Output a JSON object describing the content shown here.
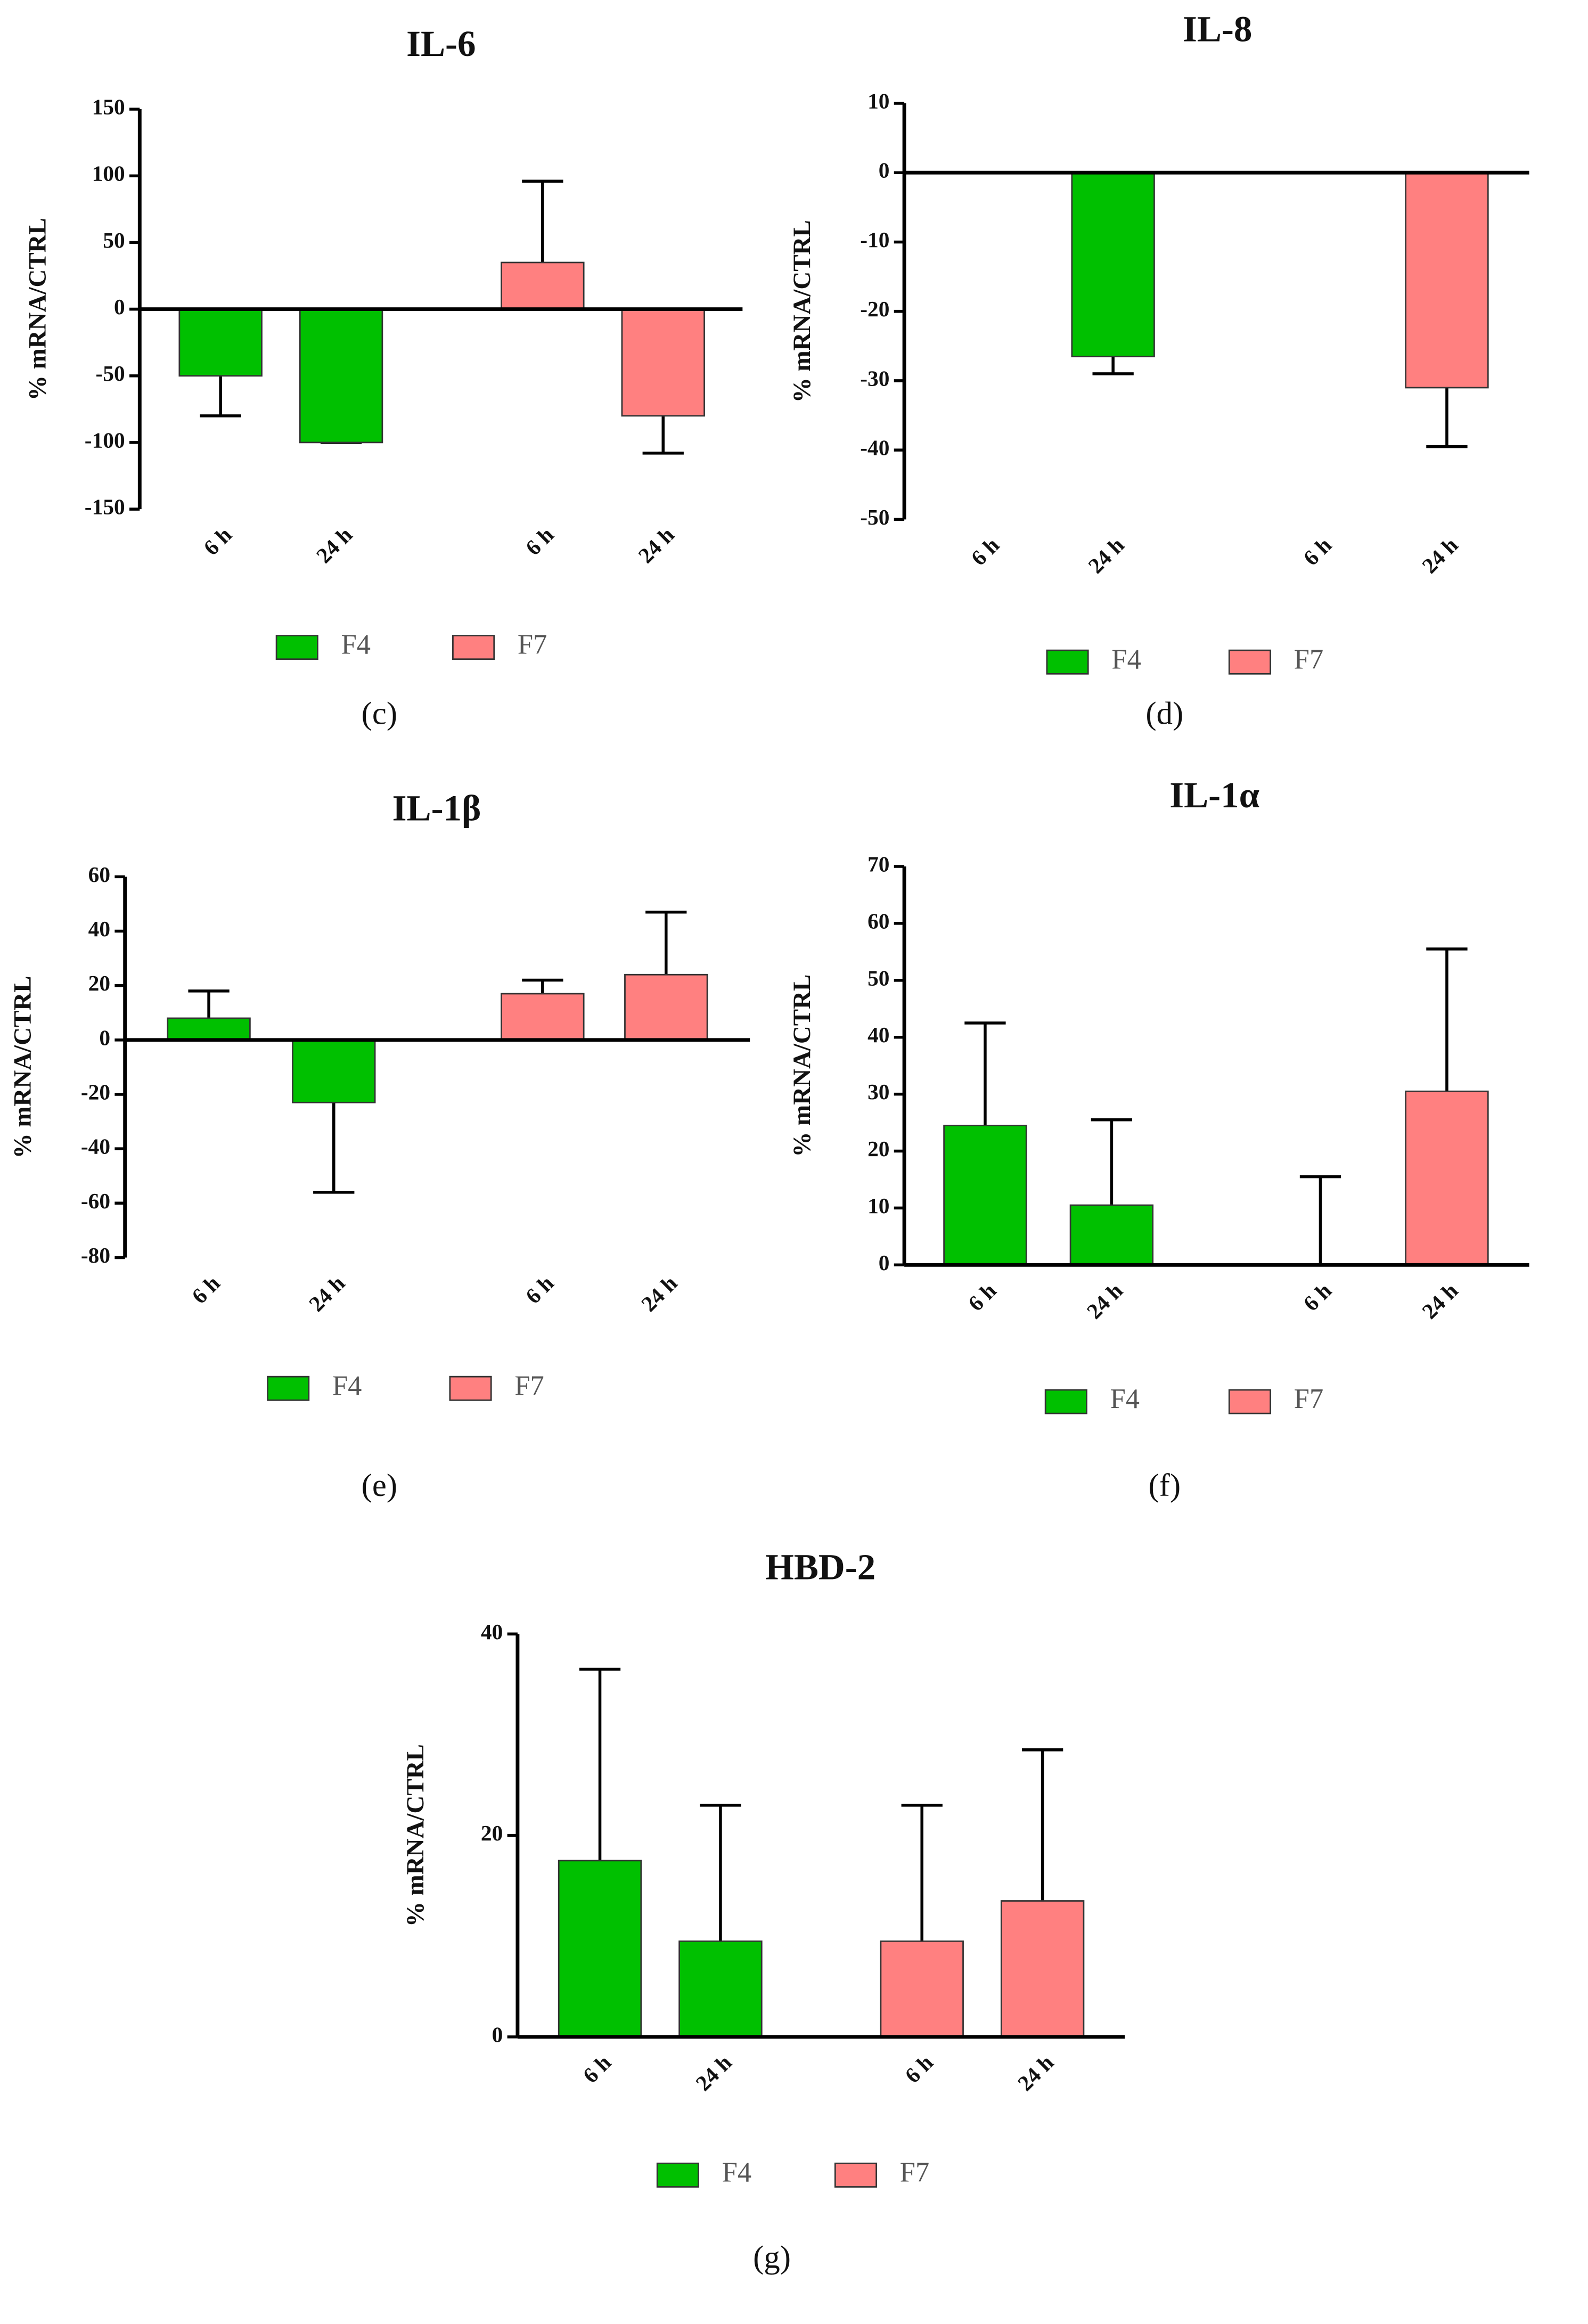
{
  "chart_data": [
    {
      "type": "bar",
      "title": "IL-6",
      "ylabel": "% mRNA/CTRL",
      "panel_label": "(c)",
      "categories": [
        "6 h",
        "24 h",
        "6 h",
        "24 h"
      ],
      "series": [
        {
          "name": "F4",
          "color": "#00c000",
          "values": [
            -50,
            -100,
            null,
            null
          ],
          "errors": [
            30,
            0,
            null,
            null
          ]
        },
        {
          "name": "F7",
          "color": "#ff8080",
          "values": [
            null,
            null,
            35,
            -80
          ],
          "errors": [
            null,
            null,
            61,
            28
          ]
        }
      ],
      "ylim": [
        -150,
        150
      ],
      "yticks": [
        -150,
        -100,
        -50,
        0,
        50,
        100,
        150
      ]
    },
    {
      "type": "bar",
      "title": "IL-8",
      "ylabel": "% mRNA/CTRL",
      "panel_label": "(d)",
      "categories": [
        "6 h",
        "24 h",
        "6 h",
        "24 h"
      ],
      "series": [
        {
          "name": "F4",
          "color": "#00c000",
          "values": [
            null,
            -26.5,
            null,
            null
          ],
          "errors": [
            null,
            2.5,
            null,
            null
          ]
        },
        {
          "name": "F7",
          "color": "#ff8080",
          "values": [
            null,
            null,
            null,
            -31
          ],
          "errors": [
            null,
            null,
            null,
            8.5
          ]
        }
      ],
      "ylim": [
        -50,
        10
      ],
      "yticks": [
        -50,
        -40,
        -30,
        -20,
        -10,
        0,
        10
      ]
    },
    {
      "type": "bar",
      "title": "IL-1β",
      "ylabel": "% mRNA/CTRL",
      "panel_label": "(e)",
      "categories": [
        "6 h",
        "24 h",
        "6 h",
        "24 h"
      ],
      "series": [
        {
          "name": "F4",
          "color": "#00c000",
          "values": [
            8,
            -23,
            null,
            null
          ],
          "errors": [
            10,
            33,
            null,
            null
          ]
        },
        {
          "name": "F7",
          "color": "#ff8080",
          "values": [
            null,
            null,
            17,
            24
          ],
          "errors": [
            null,
            null,
            5,
            23
          ]
        }
      ],
      "ylim": [
        -80,
        60
      ],
      "yticks": [
        -80,
        -60,
        -40,
        -20,
        0,
        20,
        40,
        60
      ]
    },
    {
      "type": "bar",
      "title": "IL-1α",
      "ylabel": "% mRNA/CTRL",
      "panel_label": "(f)",
      "categories": [
        "6 h",
        "24 h",
        "6 h",
        "24 h"
      ],
      "series": [
        {
          "name": "F4",
          "color": "#00c000",
          "values": [
            24.5,
            10.5,
            null,
            null
          ],
          "errors": [
            18,
            15,
            null,
            null
          ]
        },
        {
          "name": "F7",
          "color": "#ff8080",
          "values": [
            null,
            null,
            0,
            30.5
          ],
          "errors": [
            null,
            null,
            15.5,
            25
          ]
        }
      ],
      "ylim": [
        0,
        70
      ],
      "yticks": [
        0,
        10,
        20,
        30,
        40,
        50,
        60,
        70
      ]
    },
    {
      "type": "bar",
      "title": "HBD-2",
      "ylabel": "% mRNA/CTRL",
      "panel_label": "(g)",
      "categories": [
        "6 h",
        "24 h",
        "6 h",
        "24 h"
      ],
      "series": [
        {
          "name": "F4",
          "color": "#00c000",
          "values": [
            17.5,
            9.5,
            null,
            null
          ],
          "errors": [
            19,
            13.5,
            null,
            null
          ]
        },
        {
          "name": "F7",
          "color": "#ff8080",
          "values": [
            null,
            null,
            9.5,
            13.5
          ],
          "errors": [
            null,
            null,
            13.5,
            15
          ]
        }
      ],
      "ylim": [
        0,
        40
      ],
      "yticks": [
        0,
        20,
        40
      ]
    }
  ]
}
